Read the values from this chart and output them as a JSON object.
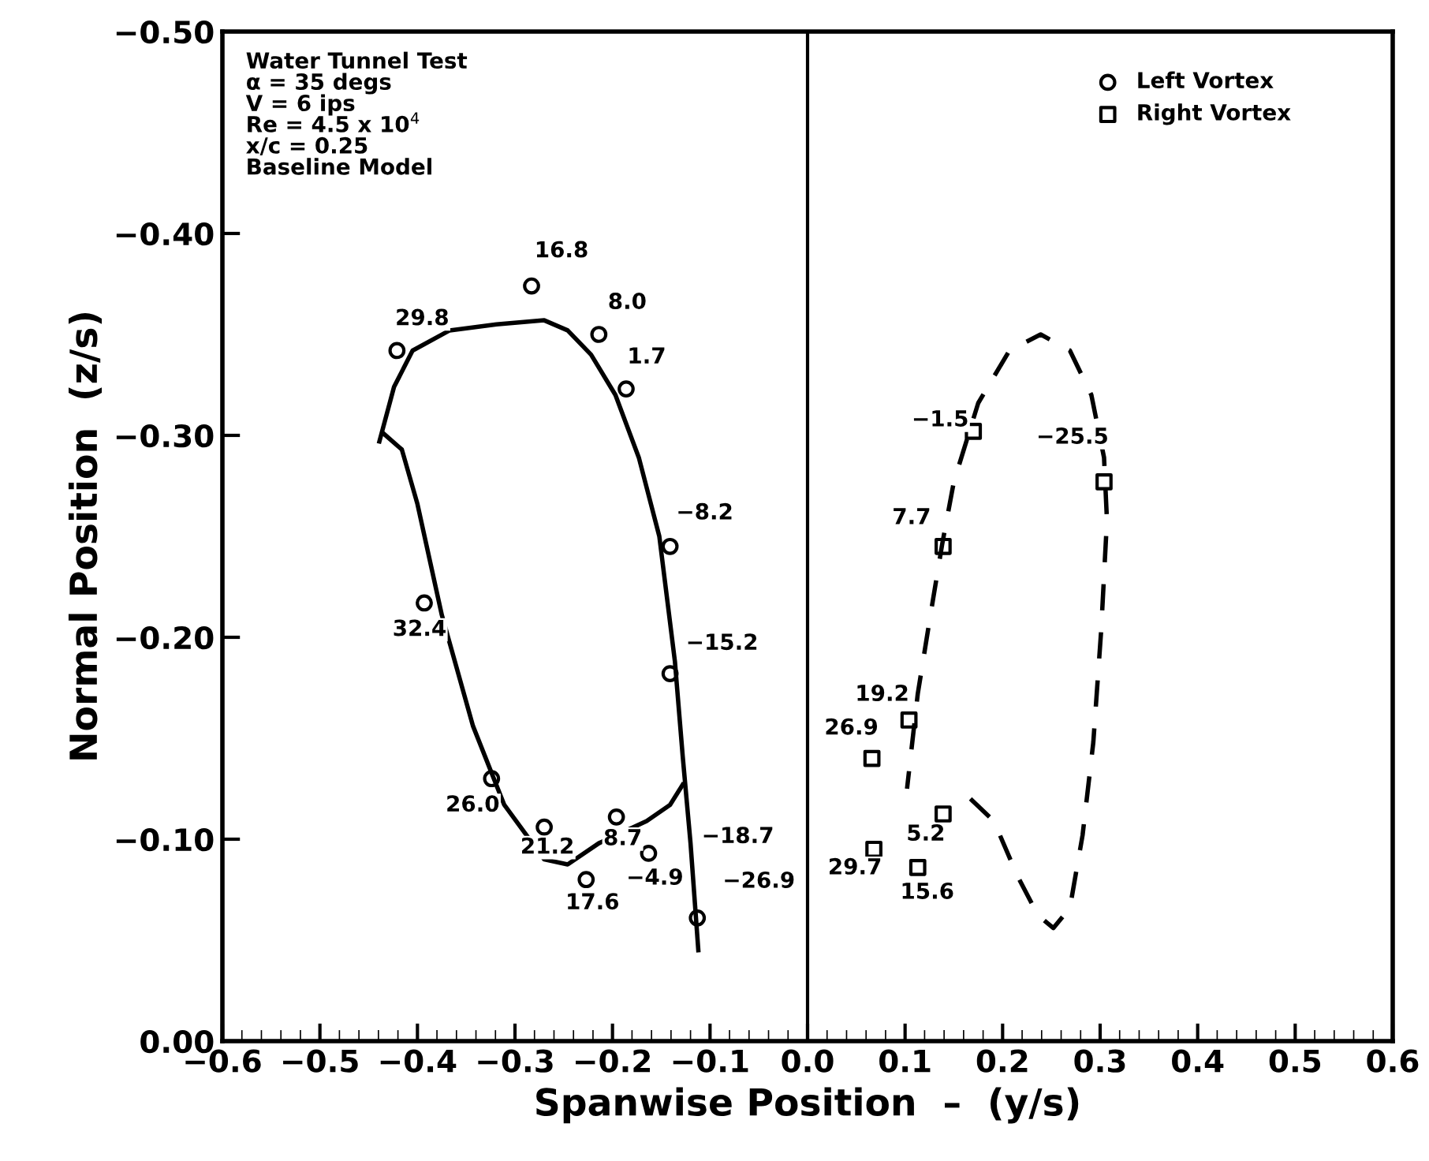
{
  "chart_data": {
    "type": "scatter",
    "xlabel": "Spanwise Position  –  (y/s)",
    "ylabel": "Normal Position  (z/s)",
    "annotations": [
      "Water Tunnel Test\nα = 35 degs\nV = 6 ips\nRe = 4.5 x 10$^{4}$\nx/c = 0.25\nBaseline Model",
      {
        "text": "29.8",
        "x": -0.421,
        "y": -0.342
      },
      {
        "text": "16.8",
        "x": -0.283,
        "y": -0.374
      },
      {
        "text": "8.0",
        "x": -0.214,
        "y": -0.35
      },
      {
        "text": "1.7",
        "x": -0.186,
        "y": -0.323
      },
      {
        "text": "−8.2",
        "x": -0.141,
        "y": -0.245
      },
      {
        "text": "32.4",
        "x": -0.393,
        "y": -0.217
      },
      {
        "text": "−15.2",
        "x": -0.141,
        "y": -0.182
      },
      {
        "text": "26.0",
        "x": -0.324,
        "y": -0.13
      },
      {
        "text": "21.2",
        "x": -0.27,
        "y": -0.106
      },
      {
        "text": "8.7",
        "x": -0.196,
        "y": -0.111
      },
      {
        "text": "−18.7",
        "x": -0.12,
        "y": -0.098
      },
      {
        "text": "−4.9",
        "x": -0.163,
        "y": -0.093
      },
      {
        "text": "−26.9",
        "x": -0.113,
        "y": -0.061
      },
      {
        "text": "17.6",
        "x": -0.227,
        "y": -0.08
      },
      {
        "text": "−1.5",
        "x": 0.17,
        "y": -0.302
      },
      {
        "text": "−25.5",
        "x": 0.304,
        "y": -0.277
      },
      {
        "text": "7.7",
        "x": 0.139,
        "y": -0.245
      },
      {
        "text": "19.2",
        "x": 0.104,
        "y": -0.159
      },
      {
        "text": "26.9",
        "x": 0.066,
        "y": -0.14
      },
      {
        "text": "5.2",
        "x": 0.139,
        "y": -0.1125
      },
      {
        "text": "29.7",
        "x": 0.068,
        "y": -0.095
      },
      {
        "text": "15.6",
        "x": 0.113,
        "y": -0.086
      }
    ],
    "xlim": [
      -0.6,
      0.6
    ],
    "xticks": [
      {
        "value": -0.6,
        "label": "−0.6"
      },
      {
        "value": -0.5,
        "label": "−0.5"
      },
      {
        "value": -0.4,
        "label": "−0.4"
      },
      {
        "value": -0.3,
        "label": "−0.3"
      },
      {
        "value": -0.2,
        "label": "−0.2"
      },
      {
        "value": -0.1,
        "label": "−0.1"
      },
      {
        "value": 0.0,
        "label": "0.0"
      },
      0.1,
      0.2,
      0.3,
      0.4,
      0.5,
      0.6
    ],
    "ylim": [
      0,
      -0.5
    ],
    "yticks": [
      {
        "value": 0,
        "label": "0.00"
      },
      {
        "value": -0.1,
        "label": "−0.10"
      },
      {
        "value": -0.2,
        "label": "−0.20"
      },
      {
        "value": -0.3,
        "label": "−0.30"
      },
      {
        "value": -0.4,
        "label": "−0.40"
      },
      {
        "value": -0.5,
        "label": "−0.50"
      }
    ],
    "grid": false,
    "legend": "top right",
    "ref_lines": [
      {
        "axis": "x",
        "value": 0,
        "color": "#000000"
      }
    ],
    "series": [
      {
        "name": "Left Vortex",
        "marker": "circle",
        "color": "#000000",
        "x": [
          -0.421,
          -0.283,
          -0.214,
          -0.186,
          -0.141,
          -0.141,
          -0.393,
          -0.324,
          -0.27,
          -0.196,
          -0.163,
          -0.227,
          -0.113
        ],
        "values": [
          -0.342,
          -0.374,
          -0.35,
          -0.323,
          -0.245,
          -0.182,
          -0.217,
          -0.13,
          -0.106,
          -0.111,
          -0.093,
          -0.08,
          -0.061
        ]
      },
      {
        "name": "Right Vortex",
        "marker": "square",
        "color": "#000000",
        "x": [
          0.17,
          0.304,
          0.139,
          0.104,
          0.066,
          0.139,
          0.068,
          0.113
        ],
        "values": [
          -0.302,
          -0.277,
          -0.245,
          -0.159,
          -0.14,
          -0.1125,
          -0.095,
          -0.086
        ]
      },
      {
        "type": "line",
        "line_style": "solid",
        "color": "#000000",
        "x": [
          -0.439,
          -0.424,
          -0.405,
          -0.367,
          -0.319,
          -0.27,
          -0.246,
          -0.222,
          -0.197,
          -0.173,
          -0.152,
          -0.136,
          -0.128,
          -0.12,
          -0.112
        ],
        "values": [
          -0.297,
          -0.324,
          -0.342,
          -0.352,
          -0.355,
          -0.357,
          -0.352,
          -0.34,
          -0.32,
          -0.289,
          -0.25,
          -0.188,
          -0.141,
          -0.098,
          -0.045
        ]
      },
      {
        "type": "line",
        "line_style": "solid",
        "color": "#000000",
        "x": [
          -0.435,
          -0.416,
          -0.4,
          -0.375,
          -0.343,
          -0.311,
          -0.27,
          -0.246,
          -0.214,
          -0.165,
          -0.141,
          -0.128
        ],
        "values": [
          -0.301,
          -0.293,
          -0.266,
          -0.211,
          -0.156,
          -0.117,
          -0.09,
          -0.0875,
          -0.098,
          -0.109,
          -0.117,
          -0.127
        ]
      },
      {
        "type": "line",
        "line_style": "dashed",
        "color": "#000000",
        "x": [
          0.167,
          0.191,
          0.215,
          0.236,
          0.252,
          0.269,
          0.282,
          0.293,
          0.301,
          0.307,
          0.304,
          0.291,
          0.269,
          0.239,
          0.207,
          0.175,
          0.15,
          0.138,
          0.126,
          0.113,
          0.102
        ],
        "values": [
          -0.12,
          -0.109,
          -0.082,
          -0.0625,
          -0.056,
          -0.066,
          -0.102,
          -0.148,
          -0.203,
          -0.258,
          -0.289,
          -0.32,
          -0.342,
          -0.35,
          -0.342,
          -0.316,
          -0.277,
          -0.246,
          -0.211,
          -0.172,
          -0.125
        ]
      }
    ]
  }
}
